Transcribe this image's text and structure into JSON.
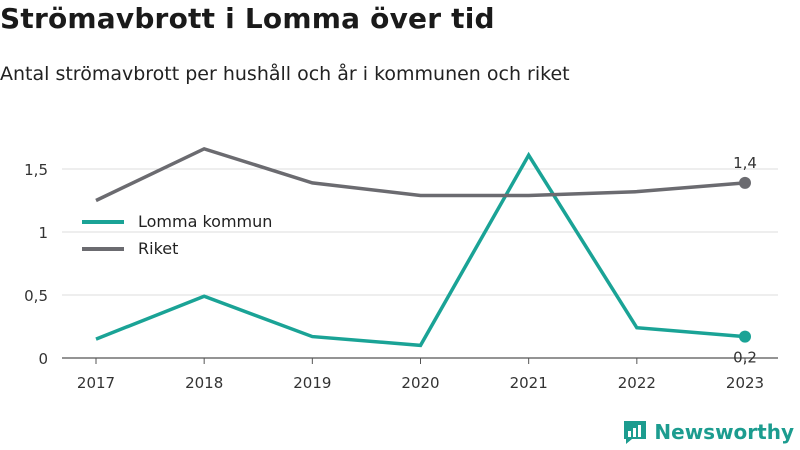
{
  "header": {
    "title": "Strömavbrott i Lomma över tid",
    "subtitle": "Antal strömavbrott per hushåll och år i kommunen och riket"
  },
  "brand": {
    "name": "Newsworthy",
    "icon": "newsworthy-logo-icon",
    "color": "#1c9c8f"
  },
  "chart_data": {
    "type": "line",
    "title": "Strömavbrott i Lomma över tid",
    "subtitle": "Antal strömavbrott per hushåll och år i kommunen och riket",
    "xlabel": "",
    "ylabel": "",
    "x": [
      "2017",
      "2018",
      "2019",
      "2020",
      "2021",
      "2022",
      "2023"
    ],
    "ylim": [
      0,
      1.75
    ],
    "yticks": [
      0,
      0.5,
      1,
      1.5
    ],
    "ytick_labels": [
      "0",
      "0,5",
      "1",
      "1,5"
    ],
    "grid": true,
    "legend": "left",
    "series": [
      {
        "name": "Lomma kommun",
        "color": "#1aa396",
        "values": [
          0.15,
          0.49,
          0.17,
          0.1,
          1.61,
          0.24,
          0.17
        ],
        "end_label": "0,2"
      },
      {
        "name": "Riket",
        "color": "#6b6b70",
        "values": [
          1.25,
          1.66,
          1.39,
          1.29,
          1.29,
          1.32,
          1.39
        ],
        "end_label": "1,4"
      }
    ]
  }
}
